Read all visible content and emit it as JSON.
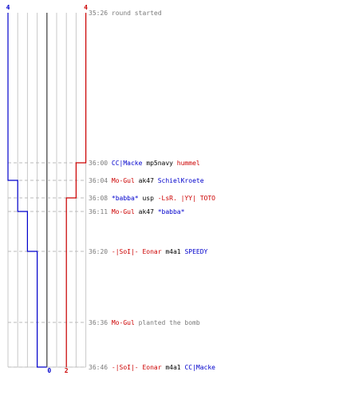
{
  "chart_data": {
    "type": "line",
    "title": "",
    "xlabel": "",
    "ylabel": "",
    "grid": true,
    "x_range": [
      -4,
      4
    ],
    "y_axis": "time",
    "y_range": [
      "35:26",
      "36:46"
    ],
    "start_counts": {
      "blue": "4",
      "red": "4"
    },
    "end_counts": {
      "blue": "0",
      "red": "2"
    },
    "series": [
      {
        "color": "#0000cc",
        "points": [
          {
            "time": "35:26",
            "value": -4
          },
          {
            "time": "36:04",
            "value": -3
          },
          {
            "time": "36:11",
            "value": -2
          },
          {
            "time": "36:20",
            "value": -1
          },
          {
            "time": "36:46",
            "value": 0
          }
        ]
      },
      {
        "color": "#cc0000",
        "points": [
          {
            "time": "35:26",
            "value": 4
          },
          {
            "time": "36:00",
            "value": 3
          },
          {
            "time": "36:08",
            "value": 2
          }
        ]
      }
    ],
    "events": [
      {
        "time": "35:26",
        "segments": [
          {
            "text": "round started",
            "team": "neutral"
          }
        ]
      },
      {
        "time": "36:00",
        "segments": [
          {
            "text": "CC|Macke",
            "team": "blue"
          },
          {
            "text": " mp5navy ",
            "team": "weapon"
          },
          {
            "text": "hummel",
            "team": "red"
          }
        ]
      },
      {
        "time": "36:04",
        "segments": [
          {
            "text": "Mo-Gul",
            "team": "red"
          },
          {
            "text": " ak47 ",
            "team": "weapon"
          },
          {
            "text": "SchielKroete",
            "team": "blue"
          }
        ]
      },
      {
        "time": "36:08",
        "segments": [
          {
            "text": "*babba*",
            "team": "blue"
          },
          {
            "text": " usp ",
            "team": "weapon"
          },
          {
            "text": "-LsR. |YY| TOTO",
            "team": "red"
          }
        ]
      },
      {
        "time": "36:11",
        "segments": [
          {
            "text": "Mo-Gul",
            "team": "red"
          },
          {
            "text": " ak47 ",
            "team": "weapon"
          },
          {
            "text": "*babba*",
            "team": "blue"
          }
        ]
      },
      {
        "time": "36:20",
        "segments": [
          {
            "text": "-|SoI|- Eonar",
            "team": "red"
          },
          {
            "text": " m4a1 ",
            "team": "weapon"
          },
          {
            "text": "SPEEDY",
            "team": "blue"
          }
        ]
      },
      {
        "time": "36:36",
        "segments": [
          {
            "text": "Mo-Gul",
            "team": "red"
          },
          {
            "text": " planted the bomb",
            "team": "neutral"
          }
        ]
      },
      {
        "time": "36:46",
        "segments": [
          {
            "text": "-|SoI|- Eonar",
            "team": "red"
          },
          {
            "text": " m4a1 ",
            "team": "weapon"
          },
          {
            "text": "CC|Macke",
            "team": "blue"
          }
        ]
      }
    ]
  },
  "colors": {
    "blue": "#0000cc",
    "red": "#cc0000",
    "weapon": "#000000",
    "time": "#7a7a7a",
    "neutral": "#7a7a7a",
    "grid": "#c8c8c8",
    "zero": "#555555",
    "dash": "#bbbbbb"
  }
}
